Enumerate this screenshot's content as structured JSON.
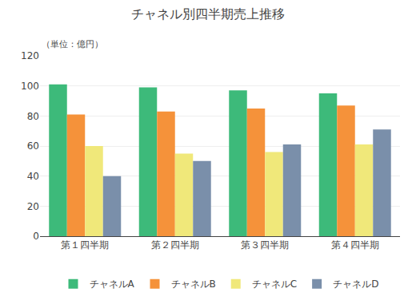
{
  "chart_data": {
    "type": "bar",
    "title": "チャネル別四半期売上推移",
    "annotations": [
      "（単位：億円）"
    ],
    "categories": [
      "第１四半期",
      "第２四半期",
      "第３四半期",
      "第４四半期"
    ],
    "series": [
      {
        "name": "チャネルA",
        "color": "#3dba7a",
        "values": [
          101,
          99,
          97,
          95
        ]
      },
      {
        "name": "チャネルB",
        "color": "#f5923a",
        "values": [
          81,
          83,
          85,
          87
        ]
      },
      {
        "name": "チャネルC",
        "color": "#f0e87a",
        "values": [
          60,
          55,
          56,
          61
        ]
      },
      {
        "name": "チャネルD",
        "color": "#7a8faa",
        "values": [
          40,
          50,
          61,
          71
        ]
      }
    ],
    "ylim": [
      0,
      120
    ],
    "yticks": [
      0,
      20,
      40,
      60,
      80,
      100,
      120
    ],
    "grid": true,
    "legend": "bottom"
  }
}
